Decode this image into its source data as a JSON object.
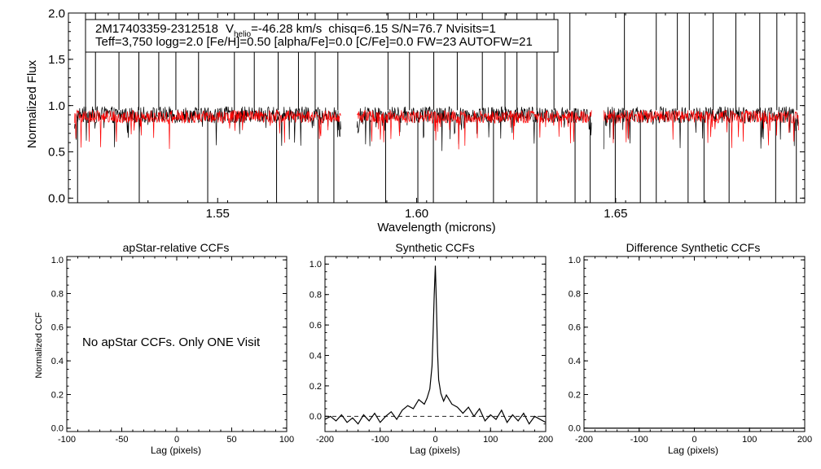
{
  "chart_data": [
    {
      "type": "line",
      "id": "spectrum",
      "title": "",
      "annotation": {
        "star": "2M17403359-2312518",
        "v_label": "V",
        "v_sub": "helio",
        "v_value": "=-46.28 km/s",
        "stats": "chisq=6.15  S/N=76.7  Nvisits=1",
        "params": "Teff=3,750 logg=2.0 [Fe/H]=0.50 [alpha/Fe]=0.0 [C/Fe]=0.0 FW=23 AUTOFW=21"
      },
      "xlabel": "Wavelength (microns)",
      "ylabel": "Normalized Flux",
      "xlim": [
        1.5125,
        1.6975
      ],
      "ylim": [
        -0.05,
        2.0
      ],
      "x_ticks": [
        1.55,
        1.6,
        1.65
      ],
      "x_tick_labels": [
        "1.55",
        "1.60",
        "1.65"
      ],
      "y_ticks": [
        0.0,
        0.5,
        1.0,
        1.5,
        2.0
      ],
      "y_tick_labels": [
        "0.0",
        "0.5",
        "1.0",
        "1.5",
        "2.0"
      ],
      "chip_ranges": [
        [
          1.514,
          1.581
        ],
        [
          1.585,
          1.644
        ],
        [
          1.647,
          1.696
        ]
      ],
      "spikes_up": [
        1.5168,
        1.5193,
        1.5252,
        1.5302,
        1.5352,
        1.5395,
        1.5452,
        1.5542,
        1.5592,
        1.5652,
        1.5703,
        1.5745,
        1.5802,
        1.5928,
        1.5982,
        1.6043,
        1.6102,
        1.6165,
        1.6222,
        1.6252,
        1.6302,
        1.6345,
        1.6385,
        1.6522,
        1.6602,
        1.6655,
        1.6685,
        1.6745,
        1.6802,
        1.6862,
        1.6905,
        1.6955
      ],
      "spikes_down": [
        1.5148,
        1.5303,
        1.5475,
        1.5648,
        1.5752,
        1.5792,
        1.5922,
        1.6003,
        1.6042,
        1.6193,
        1.6302,
        1.6398,
        1.6436,
        1.6499,
        1.6562,
        1.6602,
        1.6682,
        1.6722,
        1.6785,
        1.6902,
        1.6954
      ],
      "series": [
        {
          "name": "observed",
          "color": "#000000",
          "baseline": 0.9,
          "noise": 0.09
        },
        {
          "name": "model",
          "color": "#ff0000",
          "baseline": 0.88,
          "noise": 0.07
        }
      ]
    },
    {
      "type": "line",
      "id": "apstar",
      "title": "apStar-relative CCFs",
      "xlabel": "Lag (pixels)",
      "ylabel": "Normalized CCF",
      "xlim": [
        -100,
        100
      ],
      "ylim": [
        -0.02,
        1.02
      ],
      "x_ticks": [
        -100,
        -50,
        0,
        50,
        100
      ],
      "x_tick_labels": [
        "-100",
        "-50",
        "0",
        "50",
        "100"
      ],
      "y_ticks": [
        0.0,
        0.2,
        0.4,
        0.6,
        0.8,
        1.0
      ],
      "y_tick_labels": [
        "0.0",
        "0.2",
        "0.4",
        "0.6",
        "0.8",
        "1.0"
      ],
      "message": "No apStar CCFs.  Only ONE Visit",
      "series": []
    },
    {
      "type": "line",
      "id": "synthetic",
      "title": "Synthetic CCFs",
      "xlabel": "Lag (pixels)",
      "ylabel": "",
      "xlim": [
        -200,
        200
      ],
      "ylim": [
        -0.1,
        1.05
      ],
      "x_ticks": [
        -200,
        -100,
        0,
        100,
        200
      ],
      "x_tick_labels": [
        "-200",
        "-100",
        "0",
        "100",
        "200"
      ],
      "y_ticks": [
        0.0,
        0.2,
        0.4,
        0.6,
        0.8,
        1.0
      ],
      "y_tick_labels": [
        "0.0",
        "0.2",
        "0.4",
        "0.6",
        "0.8",
        "1.0"
      ],
      "zero_line": "dashed",
      "series": [
        {
          "name": "ccf",
          "x": [
            -200,
            -190,
            -180,
            -170,
            -160,
            -150,
            -140,
            -130,
            -120,
            -110,
            -100,
            -90,
            -80,
            -70,
            -60,
            -50,
            -40,
            -30,
            -20,
            -15,
            -10,
            -6,
            -4,
            -2,
            0,
            2,
            4,
            6,
            10,
            15,
            20,
            30,
            40,
            50,
            60,
            70,
            80,
            90,
            100,
            110,
            120,
            130,
            140,
            150,
            160,
            170,
            180,
            190,
            200
          ],
          "y": [
            -0.02,
            0.0,
            -0.03,
            0.01,
            -0.04,
            -0.01,
            -0.05,
            0.01,
            -0.03,
            0.02,
            -0.04,
            0.0,
            0.03,
            -0.02,
            0.04,
            0.07,
            0.05,
            0.11,
            0.08,
            0.12,
            0.18,
            0.33,
            0.55,
            0.8,
            0.99,
            0.72,
            0.42,
            0.24,
            0.15,
            0.1,
            0.14,
            0.08,
            0.06,
            0.02,
            0.06,
            0.0,
            0.05,
            -0.03,
            0.01,
            -0.02,
            0.04,
            -0.04,
            0.01,
            -0.03,
            0.02,
            -0.05,
            0.0,
            -0.02,
            -0.04
          ],
          "color": "#000000"
        }
      ]
    },
    {
      "type": "line",
      "id": "difference",
      "title": "Difference Synthetic CCFs",
      "xlabel": "Lag (pixels)",
      "ylabel": "",
      "xlim": [
        -200,
        200
      ],
      "ylim": [
        -0.02,
        1.02
      ],
      "x_ticks": [
        -200,
        -100,
        0,
        100,
        200
      ],
      "x_tick_labels": [
        "-200",
        "-100",
        "0",
        "100",
        "200"
      ],
      "y_ticks": [
        0.0,
        0.2,
        0.4,
        0.6,
        0.8,
        1.0
      ],
      "y_tick_labels": [
        "0.0",
        "0.2",
        "0.4",
        "0.6",
        "0.8",
        "1.0"
      ],
      "series": [
        {
          "name": "diff",
          "x": [
            -200,
            200
          ],
          "y": [
            0.0,
            0.0
          ],
          "color": "#000000"
        }
      ]
    }
  ]
}
